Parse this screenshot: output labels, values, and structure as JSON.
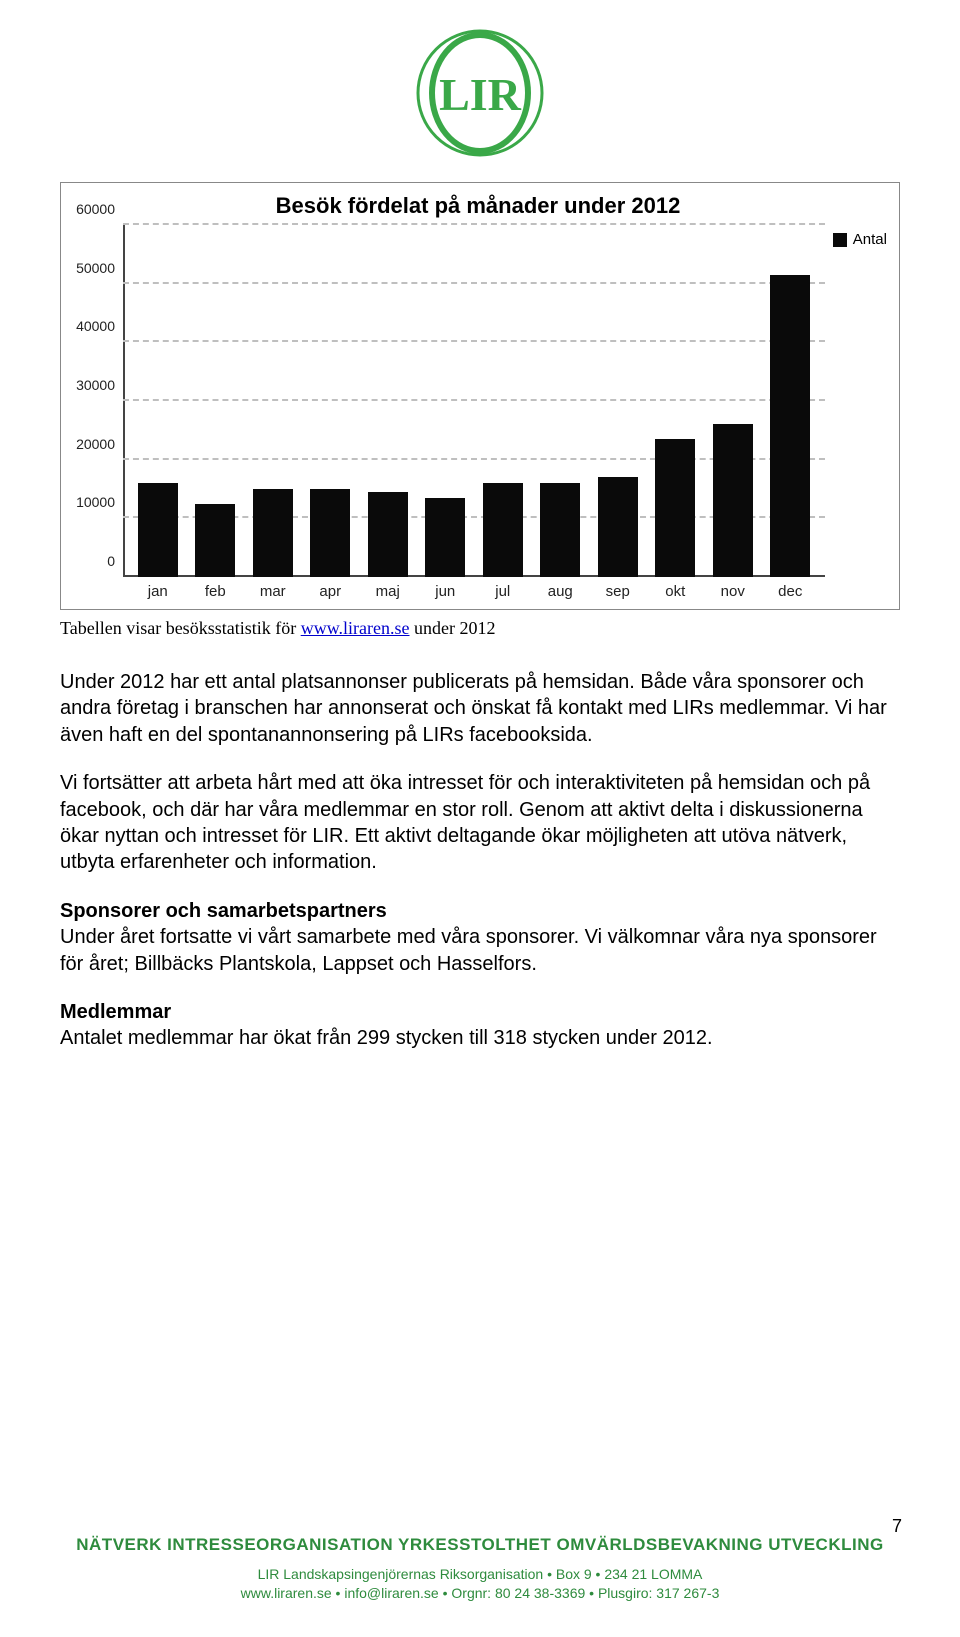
{
  "logo": {
    "text": "LIR",
    "ring_color": "#3aa848",
    "text_color": "#3aa848"
  },
  "chart": {
    "type": "bar",
    "title": "Besök fördelat på månader under 2012",
    "title_fontsize": 22,
    "legend_label": "Antal",
    "categories": [
      "jan",
      "feb",
      "mar",
      "apr",
      "maj",
      "jun",
      "jul",
      "aug",
      "sep",
      "okt",
      "nov",
      "dec"
    ],
    "values": [
      16000,
      12500,
      15000,
      15000,
      14500,
      13500,
      16000,
      16000,
      17000,
      23500,
      26000,
      51500
    ],
    "bar_color": "#0a0a0a",
    "ylim": [
      0,
      60000
    ],
    "ytick_step": 10000,
    "yticks": [
      0,
      10000,
      20000,
      30000,
      40000,
      50000,
      60000
    ],
    "grid_color": "#bfbfbf",
    "axis_color": "#444444",
    "background_color": "#ffffff",
    "label_fontsize": 15,
    "bar_width": 0.7
  },
  "caption": {
    "prefix": "Tabellen visar besöksstatistik för ",
    "link": "www.liraren.se",
    "suffix": " under 2012"
  },
  "paragraphs": {
    "p1": "Under 2012 har ett antal platsannonser publicerats på hemsidan. Både våra sponsorer och andra företag i branschen har annonserat och önskat få kontakt med LIRs medlemmar. Vi har även haft en del spontanannonsering på LIRs facebooksida.",
    "p2": "Vi fortsätter att arbeta hårt med att öka intresset för och interaktiviteten på hemsidan och på facebook, och där har våra medlemmar en stor roll. Genom att aktivt delta i diskussionerna ökar nyttan och intresset för LIR. Ett aktivt deltagande ökar möjligheten att utöva nätverk, utbyta erfarenheter och information.",
    "h3": "Sponsorer och samarbetspartners",
    "p3": "Under året fortsatte vi vårt samarbete med våra sponsorer. Vi välkomnar våra nya sponsorer för året; Billbäcks Plantskola, Lappset och Hasselfors.",
    "h4": "Medlemmar",
    "p4": "Antalet medlemmar har ökat från 299 stycken till 318 stycken under 2012."
  },
  "footer": {
    "tagline": "NÄTVERK  INTRESSEORGANISATION  YRKESSTOLTHET  OMVÄRLDSBEVAKNING  UTVECKLING",
    "line1": "LIR Landskapsingenjörernas Riksorganisation • Box 9 • 234 21 LOMMA",
    "line2": "www.liraren.se • info@liraren.se • Orgnr: 80 24 38-3369 • Plusgiro: 317 267-3"
  },
  "page_number": "7"
}
